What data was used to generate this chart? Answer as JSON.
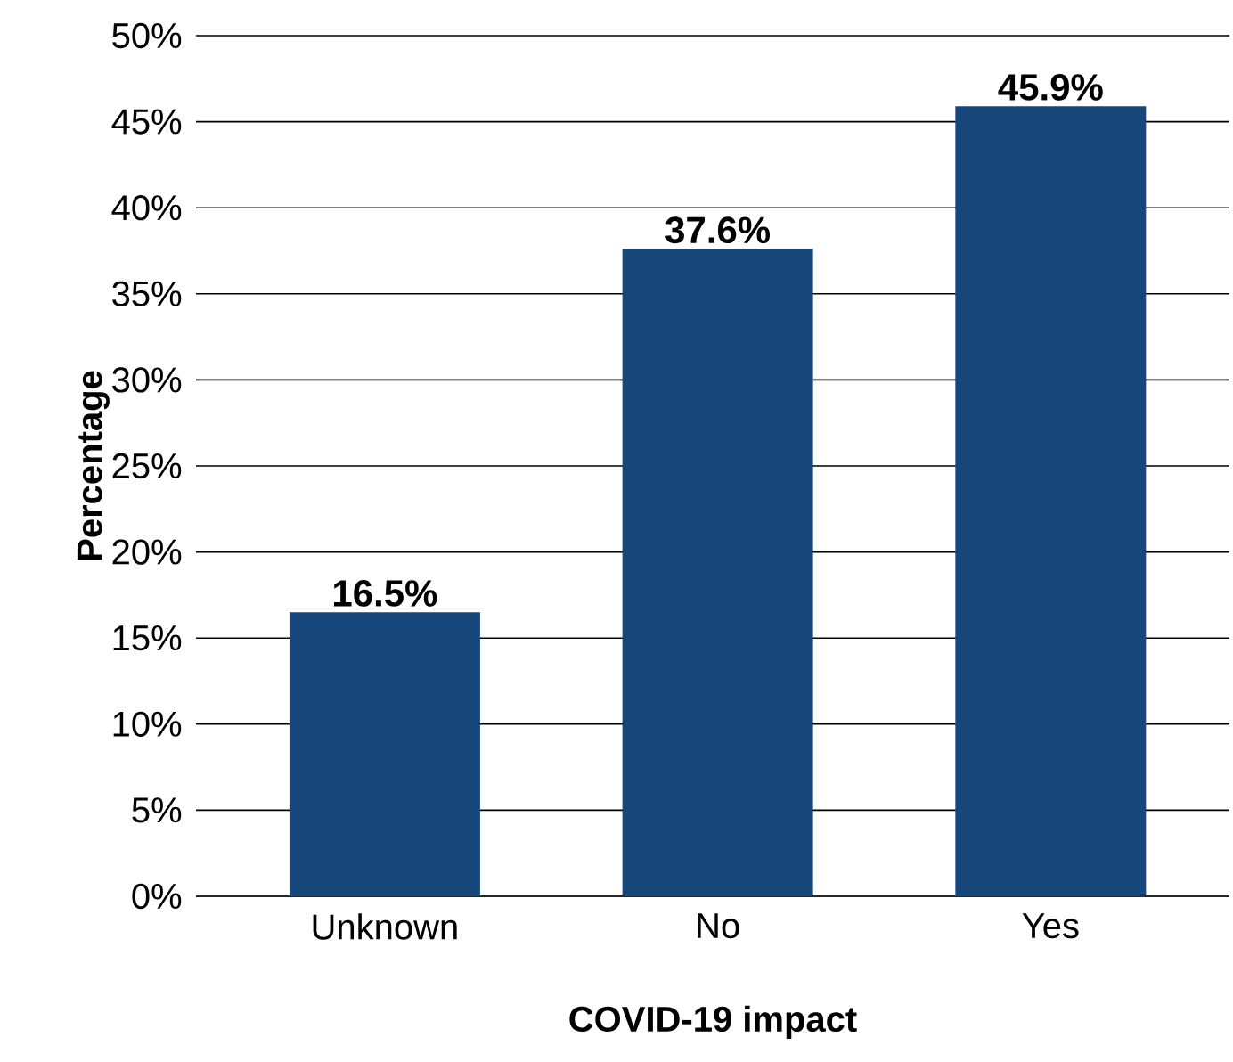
{
  "chart_data": {
    "type": "bar",
    "xlabel": "COVID-19 impact",
    "ylabel": "Percentage",
    "categories": [
      "Unknown",
      "No",
      "Yes"
    ],
    "values": [
      16.5,
      37.6,
      45.9
    ],
    "value_labels": [
      "16.5%",
      "37.6%",
      "45.9%"
    ],
    "color": "#17477a",
    "ylim": [
      0,
      50
    ],
    "yticks": [
      {
        "value": 0,
        "label": "0%"
      },
      {
        "value": 5,
        "label": "5%"
      },
      {
        "value": 10,
        "label": "10%"
      },
      {
        "value": 15,
        "label": "15%"
      },
      {
        "value": 20,
        "label": "20%"
      },
      {
        "value": 25,
        "label": "25%"
      },
      {
        "value": 30,
        "label": "30%"
      },
      {
        "value": 35,
        "label": "35%"
      },
      {
        "value": 40,
        "label": "40%"
      },
      {
        "value": 45,
        "label": "45%"
      },
      {
        "value": 50,
        "label": "50%"
      }
    ],
    "grid": "y"
  }
}
